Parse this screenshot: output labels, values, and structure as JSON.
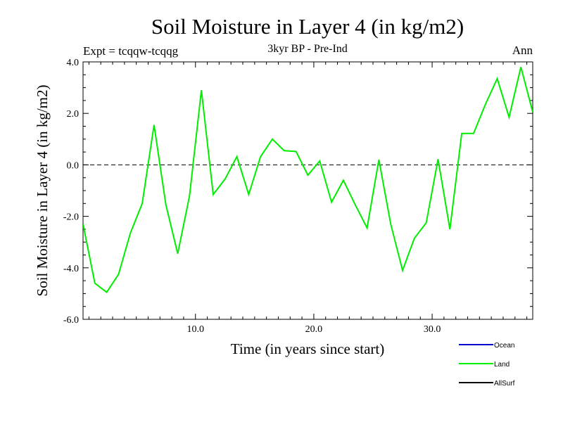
{
  "chart_data": {
    "type": "line",
    "title": "Soil Moisture in Layer 4 (in kg/m2)",
    "subtitle": "3kyr BP - Pre-Ind",
    "expt_label": "Expt = tcqqw-tcqqg",
    "season_label": "Ann",
    "xlabel": "Time (in years since start)",
    "ylabel": "Soil Moisture in Layer 4 (in kg/m2)",
    "xlim": [
      0.5,
      38.5
    ],
    "ylim": [
      -6.0,
      4.0
    ],
    "x_ticks": [
      10.0,
      20.0,
      30.0
    ],
    "x_tick_labels": [
      "10.0",
      "20.0",
      "30.0"
    ],
    "y_ticks": [
      4.0,
      2.0,
      0.0,
      -2.0,
      -4.0,
      -6.0
    ],
    "y_tick_labels": [
      "4.0",
      "2.0",
      "0.0",
      "-2.0",
      "-4.0",
      "-6.0"
    ],
    "reference_line": 0.0,
    "legend": [
      {
        "name": "Ocean",
        "color": "#0000cc"
      },
      {
        "name": "Land",
        "color": "#00ee00"
      },
      {
        "name": "AllSurf",
        "color": "#000000"
      }
    ],
    "series": [
      {
        "name": "Land",
        "color": "#00ee00",
        "x": [
          0.5,
          1.5,
          2.5,
          3.5,
          4.5,
          5.5,
          6.5,
          7.5,
          8.5,
          9.5,
          10.5,
          11.5,
          12.5,
          13.5,
          14.5,
          15.5,
          16.5,
          17.5,
          18.5,
          19.5,
          20.5,
          21.5,
          22.5,
          23.5,
          24.5,
          25.5,
          26.5,
          27.5,
          28.5,
          29.5,
          30.5,
          31.5,
          32.5,
          33.5,
          34.5,
          35.5,
          36.5,
          37.5,
          38.5
        ],
        "values": [
          -2.3,
          -4.6,
          -4.95,
          -4.25,
          -2.65,
          -1.5,
          1.55,
          -1.55,
          -3.45,
          -1.2,
          2.9,
          -1.15,
          -0.55,
          0.32,
          -1.15,
          0.32,
          1.0,
          0.55,
          0.52,
          -0.4,
          0.15,
          -1.45,
          -0.6,
          -1.55,
          -2.45,
          0.2,
          -2.3,
          -4.1,
          -2.85,
          -2.25,
          0.22,
          -2.5,
          1.22,
          1.22,
          2.35,
          3.35,
          1.85,
          3.8,
          2.05
        ]
      }
    ]
  }
}
